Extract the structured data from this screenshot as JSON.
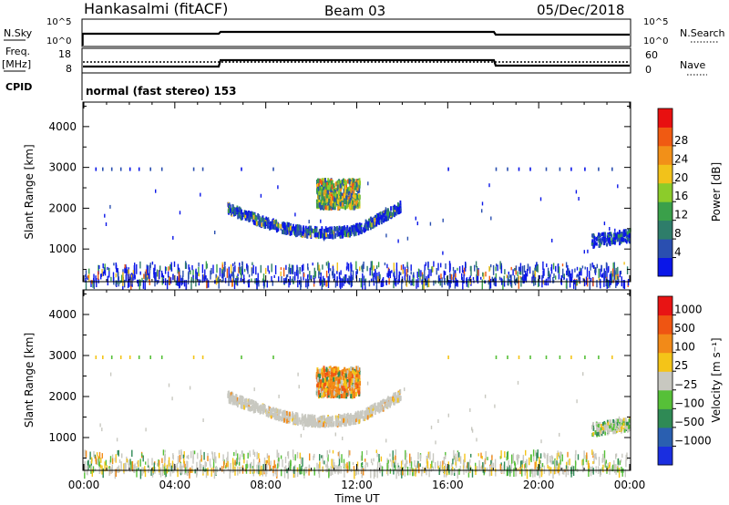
{
  "header": {
    "station": "Hankasalmi (fitACF)",
    "beam": "Beam 03",
    "date": "05/Dec/2018"
  },
  "top_panel": {
    "left_label_1": "N.Sky",
    "left_label_2": "Freq.",
    "left_label_3": "[MHz]",
    "left_label_4": "CPID",
    "right_label_1": "N.Search",
    "right_label_2": "Nave",
    "nsky_ticks": [
      "10^5",
      "10^0"
    ],
    "nsearch_ticks": [
      "10^5",
      "10^0"
    ],
    "freq_ticks": [
      "18",
      "8"
    ],
    "nave_ticks": [
      "60",
      "0"
    ],
    "cpid_text": "normal (fast stereo) 153"
  },
  "time_axis": {
    "ticks": [
      "00:00",
      "04:00",
      "08:00",
      "12:00",
      "16:00",
      "20:00",
      "00:00"
    ],
    "label": "Time UT"
  },
  "chart_data": [
    {
      "type": "heatmap",
      "panel": "power",
      "ylabel": "Slant Range [km]",
      "yticks": [
        1000,
        2000,
        3000,
        4000
      ],
      "ylim": [
        200,
        4600
      ],
      "xlim": [
        0,
        24
      ],
      "colorbar": {
        "label": "Power [dB]",
        "ticks": [
          "4",
          "8",
          "12",
          "16",
          "20",
          "24",
          "28"
        ],
        "colors": [
          "#0a16e8",
          "#2a4fb0",
          "#2e7d6a",
          "#3aa04a",
          "#8ccc2a",
          "#f2c21a",
          "#f29018",
          "#f05a12",
          "#e81010"
        ]
      },
      "features": [
        {
          "name": "ground scatter near range",
          "t_start": 0.0,
          "t_end": 24.0,
          "range_min": 250,
          "range_max": 650
        },
        {
          "name": "arc 1",
          "t_start": 6.3,
          "t_end": 14.0,
          "range_min": 1350,
          "range_max": 2150
        },
        {
          "name": "cluster",
          "t_start": 10.2,
          "t_end": 12.0,
          "range_min": 2050,
          "range_max": 2700
        },
        {
          "name": "late echoes",
          "t_start": 22.3,
          "t_end": 24.0,
          "range_min": 1050,
          "range_max": 1350
        }
      ]
    },
    {
      "type": "heatmap",
      "panel": "velocity",
      "ylabel": "Slant Range [km]",
      "yticks": [
        1000,
        2000,
        3000,
        4000
      ],
      "ylim": [
        200,
        4600
      ],
      "xlim": [
        0,
        24
      ],
      "colorbar": {
        "label": "Velocity [m s⁻¹]",
        "ticks": [
          "1000",
          "500",
          "100",
          "25",
          "−25",
          "−100",
          "−500",
          "−1000"
        ],
        "colors": [
          "#1a2ee0",
          "#2a5fb0",
          "#2f8a55",
          "#56c038",
          "#c8c8c0",
          "#f4c418",
          "#f28a18",
          "#ef5512",
          "#e81414"
        ]
      }
    }
  ]
}
